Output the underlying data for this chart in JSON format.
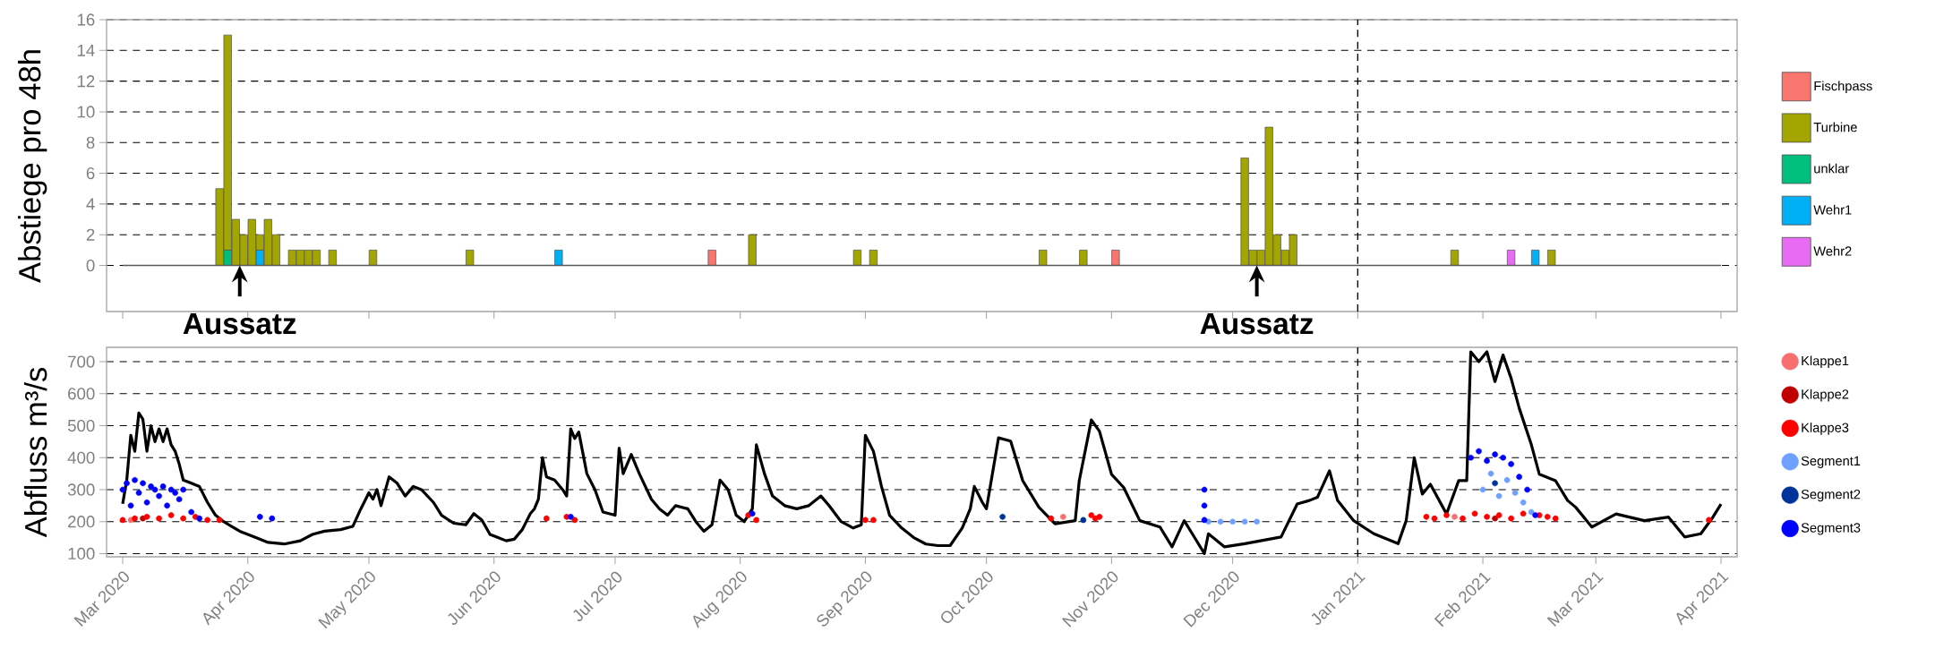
{
  "chart_data": [
    {
      "type": "bar",
      "stacked": true,
      "ylabel": "Abstiege pro 48h",
      "tick_labels": "y",
      "grid": "y",
      "legend": "right",
      "x": [
        "2020-03-25",
        "2020-03-27",
        "2020-03-29",
        "2020-03-31",
        "2020-04-02",
        "2020-04-04",
        "2020-04-06",
        "2020-04-08",
        "2020-04-12",
        "2020-04-14",
        "2020-04-16",
        "2020-04-18",
        "2020-04-22",
        "2020-05-02",
        "2020-05-26",
        "2020-06-17",
        "2020-07-25",
        "2020-08-04",
        "2020-08-30",
        "2020-09-03",
        "2020-10-15",
        "2020-10-25",
        "2020-11-02",
        "2020-12-04",
        "2020-12-06",
        "2020-12-08",
        "2020-12-10",
        "2020-12-12",
        "2020-12-14",
        "2020-12-16",
        "2021-01-25",
        "2021-02-08",
        "2021-02-14",
        "2021-02-18"
      ],
      "series": [
        {
          "name": "Wehr2",
          "color": "#e76bf3",
          "values": [
            null,
            null,
            null,
            null,
            null,
            null,
            null,
            null,
            null,
            null,
            null,
            null,
            null,
            null,
            null,
            null,
            null,
            null,
            null,
            null,
            null,
            null,
            null,
            null,
            null,
            null,
            null,
            null,
            null,
            null,
            null,
            1,
            null,
            null
          ]
        },
        {
          "name": "Wehr1",
          "color": "#00b0f6",
          "values": [
            null,
            null,
            null,
            null,
            null,
            1,
            null,
            null,
            null,
            null,
            null,
            null,
            null,
            null,
            null,
            1,
            null,
            null,
            null,
            null,
            null,
            null,
            null,
            null,
            null,
            null,
            null,
            null,
            null,
            null,
            null,
            null,
            1,
            null
          ]
        },
        {
          "name": "unklar",
          "color": "#00bf7d",
          "values": [
            null,
            1,
            null,
            null,
            null,
            null,
            null,
            null,
            null,
            null,
            null,
            null,
            null,
            null,
            null,
            null,
            null,
            null,
            null,
            null,
            null,
            null,
            null,
            null,
            null,
            null,
            null,
            null,
            null,
            null,
            null,
            null,
            null,
            null
          ]
        },
        {
          "name": "Turbine",
          "color": "#a3a500",
          "values": [
            5,
            14,
            3,
            2,
            3,
            1,
            3,
            2,
            1,
            1,
            1,
            1,
            1,
            1,
            1,
            null,
            null,
            2,
            1,
            1,
            1,
            1,
            null,
            7,
            1,
            1,
            9,
            2,
            1,
            2,
            1,
            null,
            null,
            1
          ]
        },
        {
          "name": "Fischpass",
          "color": "#f8766d",
          "values": [
            null,
            null,
            null,
            null,
            null,
            null,
            null,
            null,
            null,
            null,
            null,
            null,
            null,
            null,
            null,
            null,
            1,
            null,
            null,
            null,
            null,
            null,
            1,
            null,
            null,
            null,
            null,
            null,
            null,
            null,
            null,
            null,
            null,
            null
          ]
        }
      ],
      "xlim": [
        "2020-02-26",
        "2021-04-05"
      ],
      "ylim": [
        -3,
        16
      ],
      "yticks": [
        0,
        2,
        4,
        6,
        8,
        10,
        12,
        14,
        16
      ],
      "xticks": [
        {
          "value": "2020-03-01",
          "label": null
        },
        {
          "value": "2020-04-01",
          "label": null
        },
        {
          "value": "2020-05-01",
          "label": null
        },
        {
          "value": "2020-06-01",
          "label": null
        },
        {
          "value": "2020-07-01",
          "label": null
        },
        {
          "value": "2020-08-01",
          "label": null
        },
        {
          "value": "2020-09-01",
          "label": null
        },
        {
          "value": "2020-10-01",
          "label": null
        },
        {
          "value": "2020-11-01",
          "label": null
        },
        {
          "value": "2020-12-01",
          "label": null
        },
        {
          "value": "2021-01-01",
          "label": null
        },
        {
          "value": "2021-02-01",
          "label": null
        },
        {
          "value": "2021-03-01",
          "label": null
        },
        {
          "value": "2021-04-01",
          "label": null
        }
      ],
      "ref_lines": [
        {
          "axis": "x",
          "value": "2021-01-01",
          "line_style": "dashed"
        }
      ],
      "annotations": [
        {
          "text": "Aussatz",
          "x": "2020-03-30",
          "y": 0
        },
        {
          "text": "Aussatz",
          "x": "2020-12-07",
          "y": 0
        }
      ]
    },
    {
      "type": "line",
      "ylabel": "Abfluss m³/s",
      "grid": "y",
      "legend": "right",
      "series": [
        {
          "color": "#000000",
          "x": [
            "2020-03-01",
            "2020-03-02",
            "2020-03-03",
            "2020-03-04",
            "2020-03-05",
            "2020-03-06",
            "2020-03-07",
            "2020-03-08",
            "2020-03-09",
            "2020-03-10",
            "2020-03-11",
            "2020-03-12",
            "2020-03-13",
            "2020-03-14",
            "2020-03-15",
            "2020-03-16",
            "2020-03-18",
            "2020-03-20",
            "2020-03-22",
            "2020-03-24",
            "2020-03-26",
            "2020-03-28",
            "2020-03-30",
            "2020-04-01",
            "2020-04-03",
            "2020-04-06",
            "2020-04-10",
            "2020-04-14",
            "2020-04-17",
            "2020-04-20",
            "2020-04-24",
            "2020-04-27",
            "2020-04-29",
            "2020-05-01",
            "2020-05-02",
            "2020-05-03",
            "2020-05-04",
            "2020-05-06",
            "2020-05-08",
            "2020-05-10",
            "2020-05-12",
            "2020-05-14",
            "2020-05-17",
            "2020-05-19",
            "2020-05-22",
            "2020-05-25",
            "2020-05-27",
            "2020-05-29",
            "2020-05-31",
            "2020-06-02",
            "2020-06-04",
            "2020-06-06",
            "2020-06-08",
            "2020-06-10",
            "2020-06-11",
            "2020-06-12",
            "2020-06-13",
            "2020-06-14",
            "2020-06-16",
            "2020-06-18",
            "2020-06-19",
            "2020-06-20",
            "2020-06-21",
            "2020-06-22",
            "2020-06-24",
            "2020-06-26",
            "2020-06-28",
            "2020-07-01",
            "2020-07-02",
            "2020-07-03",
            "2020-07-05",
            "2020-07-07",
            "2020-07-10",
            "2020-07-12",
            "2020-07-14",
            "2020-07-16",
            "2020-07-19",
            "2020-07-21",
            "2020-07-23",
            "2020-07-25",
            "2020-07-27",
            "2020-07-29",
            "2020-07-31",
            "2020-08-02",
            "2020-08-04",
            "2020-08-05",
            "2020-08-07",
            "2020-08-09",
            "2020-08-12",
            "2020-08-15",
            "2020-08-18",
            "2020-08-21",
            "2020-08-23",
            "2020-08-26",
            "2020-08-29",
            "2020-08-31",
            "2020-09-01",
            "2020-09-03",
            "2020-09-05",
            "2020-09-07",
            "2020-09-10",
            "2020-09-13",
            "2020-09-16",
            "2020-09-19",
            "2020-09-22",
            "2020-09-25",
            "2020-09-27",
            "2020-09-28",
            "2020-09-30",
            "2020-10-01",
            "2020-10-04",
            "2020-10-07",
            "2020-10-10",
            "2020-10-14",
            "2020-10-18",
            "2020-10-23",
            "2020-10-24",
            "2020-10-27",
            "2020-10-29",
            "2020-11-01",
            "2020-11-04",
            "2020-11-08",
            "2020-11-13",
            "2020-11-16",
            "2020-11-19",
            "2020-11-21",
            "2020-11-24",
            "2020-11-25",
            "2020-11-29",
            "2020-12-04",
            "2020-12-13",
            "2020-12-17",
            "2020-12-20",
            "2020-12-22",
            "2020-12-25",
            "2020-12-27",
            "2020-12-31",
            "2021-01-05",
            "2021-01-11",
            "2021-01-13",
            "2021-01-15",
            "2021-01-17",
            "2021-01-19",
            "2021-01-23",
            "2021-01-26",
            "2021-01-28",
            "2021-01-29",
            "2021-01-31",
            "2021-02-02",
            "2021-02-04",
            "2021-02-06",
            "2021-02-08",
            "2021-02-10",
            "2021-02-13",
            "2021-02-15",
            "2021-02-19",
            "2021-02-22",
            "2021-02-24",
            "2021-02-28",
            "2021-03-06",
            "2021-03-13",
            "2021-03-19",
            "2021-03-23",
            "2021-03-27",
            "2021-03-30",
            "2021-04-01"
          ],
          "values": [
            256,
            330,
            470,
            420,
            540,
            520,
            420,
            500,
            450,
            490,
            450,
            490,
            440,
            420,
            380,
            330,
            320,
            310,
            260,
            220,
            200,
            185,
            170,
            160,
            150,
            135,
            130,
            140,
            160,
            170,
            175,
            185,
            240,
            290,
            270,
            300,
            250,
            340,
            320,
            280,
            310,
            300,
            260,
            220,
            195,
            190,
            225,
            205,
            160,
            150,
            140,
            145,
            175,
            225,
            240,
            270,
            400,
            340,
            330,
            300,
            280,
            490,
            460,
            480,
            350,
            300,
            230,
            220,
            430,
            350,
            410,
            350,
            270,
            240,
            220,
            250,
            240,
            200,
            170,
            190,
            330,
            300,
            220,
            200,
            240,
            440,
            350,
            280,
            250,
            240,
            250,
            280,
            250,
            200,
            180,
            190,
            470,
            420,
            310,
            220,
            180,
            150,
            130,
            125,
            125,
            180,
            240,
            310,
            260,
            240,
            462,
            452,
            328,
            245,
            193,
            203,
            328,
            518,
            483,
            348,
            307,
            203,
            183,
            121,
            203,
            162,
            100,
            162,
            121,
            131,
            152,
            255,
            266,
            276,
            359,
            266,
            203,
            162,
            131,
            203,
            400,
            286,
            317,
            224,
            328,
            328,
            731,
            700,
            731,
            638,
            721,
            648,
            555,
            441,
            348,
            328,
            266,
            245,
            183,
            224,
            203,
            214,
            152,
            162,
            214,
            255
          ]
        },
        {
          "name": "Klappe1",
          "type": "scatter",
          "marker": "circle",
          "color": "#f86f6f",
          "x": [
            "2020-03-03",
            "2020-10-20",
            "2021-01-25"
          ],
          "values": [
            205,
            215,
            215
          ]
        },
        {
          "name": "Klappe2",
          "type": "scatter",
          "marker": "circle",
          "color": "#c00000",
          "x": [
            "2020-03-06",
            "2021-02-04"
          ],
          "values": [
            210,
            210
          ]
        },
        {
          "name": "Klappe3",
          "type": "scatter",
          "marker": "circle",
          "color": "#ff0000",
          "x": [
            "2020-03-01",
            "2020-03-04",
            "2020-03-07",
            "2020-03-10",
            "2020-03-13",
            "2020-03-16",
            "2020-03-19",
            "2020-03-22",
            "2020-03-25",
            "2020-06-14",
            "2020-06-19",
            "2020-06-21",
            "2020-08-03",
            "2020-08-05",
            "2020-09-01",
            "2020-09-03",
            "2020-10-17",
            "2020-10-27",
            "2020-10-28",
            "2020-10-29",
            "2021-01-18",
            "2021-01-20",
            "2021-01-23",
            "2021-01-27",
            "2021-01-30",
            "2021-02-02",
            "2021-02-05",
            "2021-02-08",
            "2021-02-11",
            "2021-02-15",
            "2021-02-17",
            "2021-02-19",
            "2021-03-29"
          ],
          "values": [
            205,
            210,
            215,
            210,
            220,
            210,
            215,
            205,
            205,
            210,
            215,
            205,
            220,
            205,
            205,
            205,
            210,
            220,
            210,
            215,
            215,
            210,
            220,
            210,
            225,
            215,
            220,
            210,
            225,
            220,
            215,
            210,
            205
          ]
        },
        {
          "name": "Segment1",
          "type": "scatter",
          "marker": "circle",
          "color": "#6fa0ff",
          "x": [
            "2020-11-25",
            "2020-11-28",
            "2020-12-01",
            "2020-12-04",
            "2020-12-07",
            "2021-02-01",
            "2021-02-03",
            "2021-02-05",
            "2021-02-07",
            "2021-02-09",
            "2021-02-11",
            "2021-02-13"
          ],
          "values": [
            200,
            200,
            200,
            200,
            200,
            300,
            350,
            280,
            330,
            290,
            260,
            230
          ]
        },
        {
          "name": "Segment2",
          "type": "scatter",
          "marker": "circle",
          "color": "#00339a",
          "x": [
            "2020-10-05",
            "2020-10-25",
            "2021-02-04"
          ],
          "values": [
            215,
            205,
            320
          ]
        },
        {
          "name": "Segment3",
          "type": "scatter",
          "marker": "circle",
          "color": "#0000ff",
          "x": [
            "2020-03-01",
            "2020-03-02",
            "2020-03-03",
            "2020-03-04",
            "2020-03-05",
            "2020-03-06",
            "2020-03-07",
            "2020-03-08",
            "2020-03-09",
            "2020-03-10",
            "2020-03-11",
            "2020-03-12",
            "2020-03-13",
            "2020-03-14",
            "2020-03-15",
            "2020-03-16",
            "2020-03-18",
            "2020-03-20",
            "2020-04-04",
            "2020-04-07",
            "2020-06-20",
            "2020-08-04",
            "2020-11-24",
            "2020-11-24",
            "2020-11-24",
            "2021-01-29",
            "2021-01-31",
            "2021-02-02",
            "2021-02-04",
            "2021-02-06",
            "2021-02-08",
            "2021-02-10",
            "2021-02-12",
            "2021-02-14"
          ],
          "values": [
            300,
            320,
            250,
            330,
            290,
            320,
            260,
            310,
            300,
            280,
            310,
            250,
            300,
            290,
            270,
            300,
            230,
            210,
            215,
            210,
            215,
            225,
            300,
            250,
            205,
            400,
            420,
            390,
            410,
            400,
            380,
            340,
            300,
            220
          ]
        }
      ],
      "xlim": [
        "2020-02-26",
        "2021-04-05"
      ],
      "ylim": [
        90,
        745
      ],
      "yticks": [
        100,
        200,
        300,
        400,
        500,
        600,
        700
      ],
      "xticks": [
        {
          "value": "2020-03-01",
          "label": "Mar 2020"
        },
        {
          "value": "2020-04-01",
          "label": "Apr 2020"
        },
        {
          "value": "2020-05-01",
          "label": "May 2020"
        },
        {
          "value": "2020-06-01",
          "label": "Jun 2020"
        },
        {
          "value": "2020-07-01",
          "label": "Jul 2020"
        },
        {
          "value": "2020-08-01",
          "label": "Aug 2020"
        },
        {
          "value": "2020-09-01",
          "label": "Sep 2020"
        },
        {
          "value": "2020-10-01",
          "label": "Oct 2020"
        },
        {
          "value": "2020-11-01",
          "label": "Nov 2020"
        },
        {
          "value": "2020-12-01",
          "label": "Dec 2020"
        },
        {
          "value": "2021-01-01",
          "label": "Jan 2021"
        },
        {
          "value": "2021-02-01",
          "label": "Feb 2021"
        },
        {
          "value": "2021-03-01",
          "label": "Mar 2021"
        },
        {
          "value": "2021-04-01",
          "label": "Apr 2021"
        }
      ],
      "ref_lines": [
        {
          "axis": "x",
          "value": "2021-01-01",
          "line_style": "dashed"
        }
      ]
    }
  ]
}
